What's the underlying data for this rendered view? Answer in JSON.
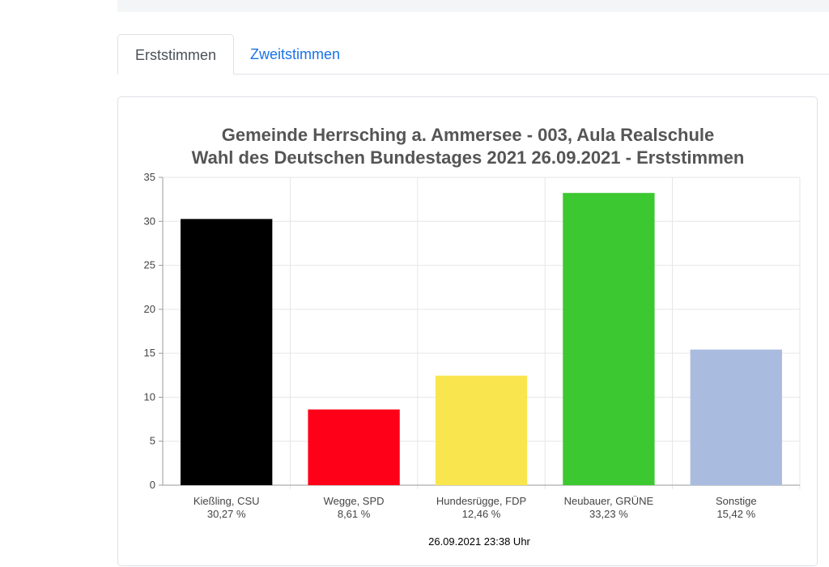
{
  "tabs": [
    {
      "label": "Erststimmen",
      "active": true
    },
    {
      "label": "Zweitstimmen",
      "active": false
    }
  ],
  "chart_data": {
    "type": "bar",
    "title": "Gemeinde Herrsching a. Ammersee - 003, Aula Realschule",
    "subtitle": "Wahl des Deutschen Bundestages 2021 26.09.2021  - Erststimmen",
    "categories": [
      "Kießling, CSU",
      "Wegge, SPD",
      "Hundesrügge, FDP",
      "Neubauer, GRÜNE",
      "Sonstige"
    ],
    "value_labels": [
      "30,27 %",
      "8,61 %",
      "12,46 %",
      "33,23 %",
      "15,42 %"
    ],
    "values": [
      30.27,
      8.61,
      12.46,
      33.23,
      15.42
    ],
    "colors": [
      "#000000",
      "#ff0019",
      "#f9e64e",
      "#3cc830",
      "#a9bce0"
    ],
    "yticks": [
      0,
      5,
      10,
      15,
      20,
      25,
      30,
      35
    ],
    "ylim": [
      0,
      35
    ],
    "grid": true,
    "footer": "26.09.2021 23:38 Uhr"
  }
}
